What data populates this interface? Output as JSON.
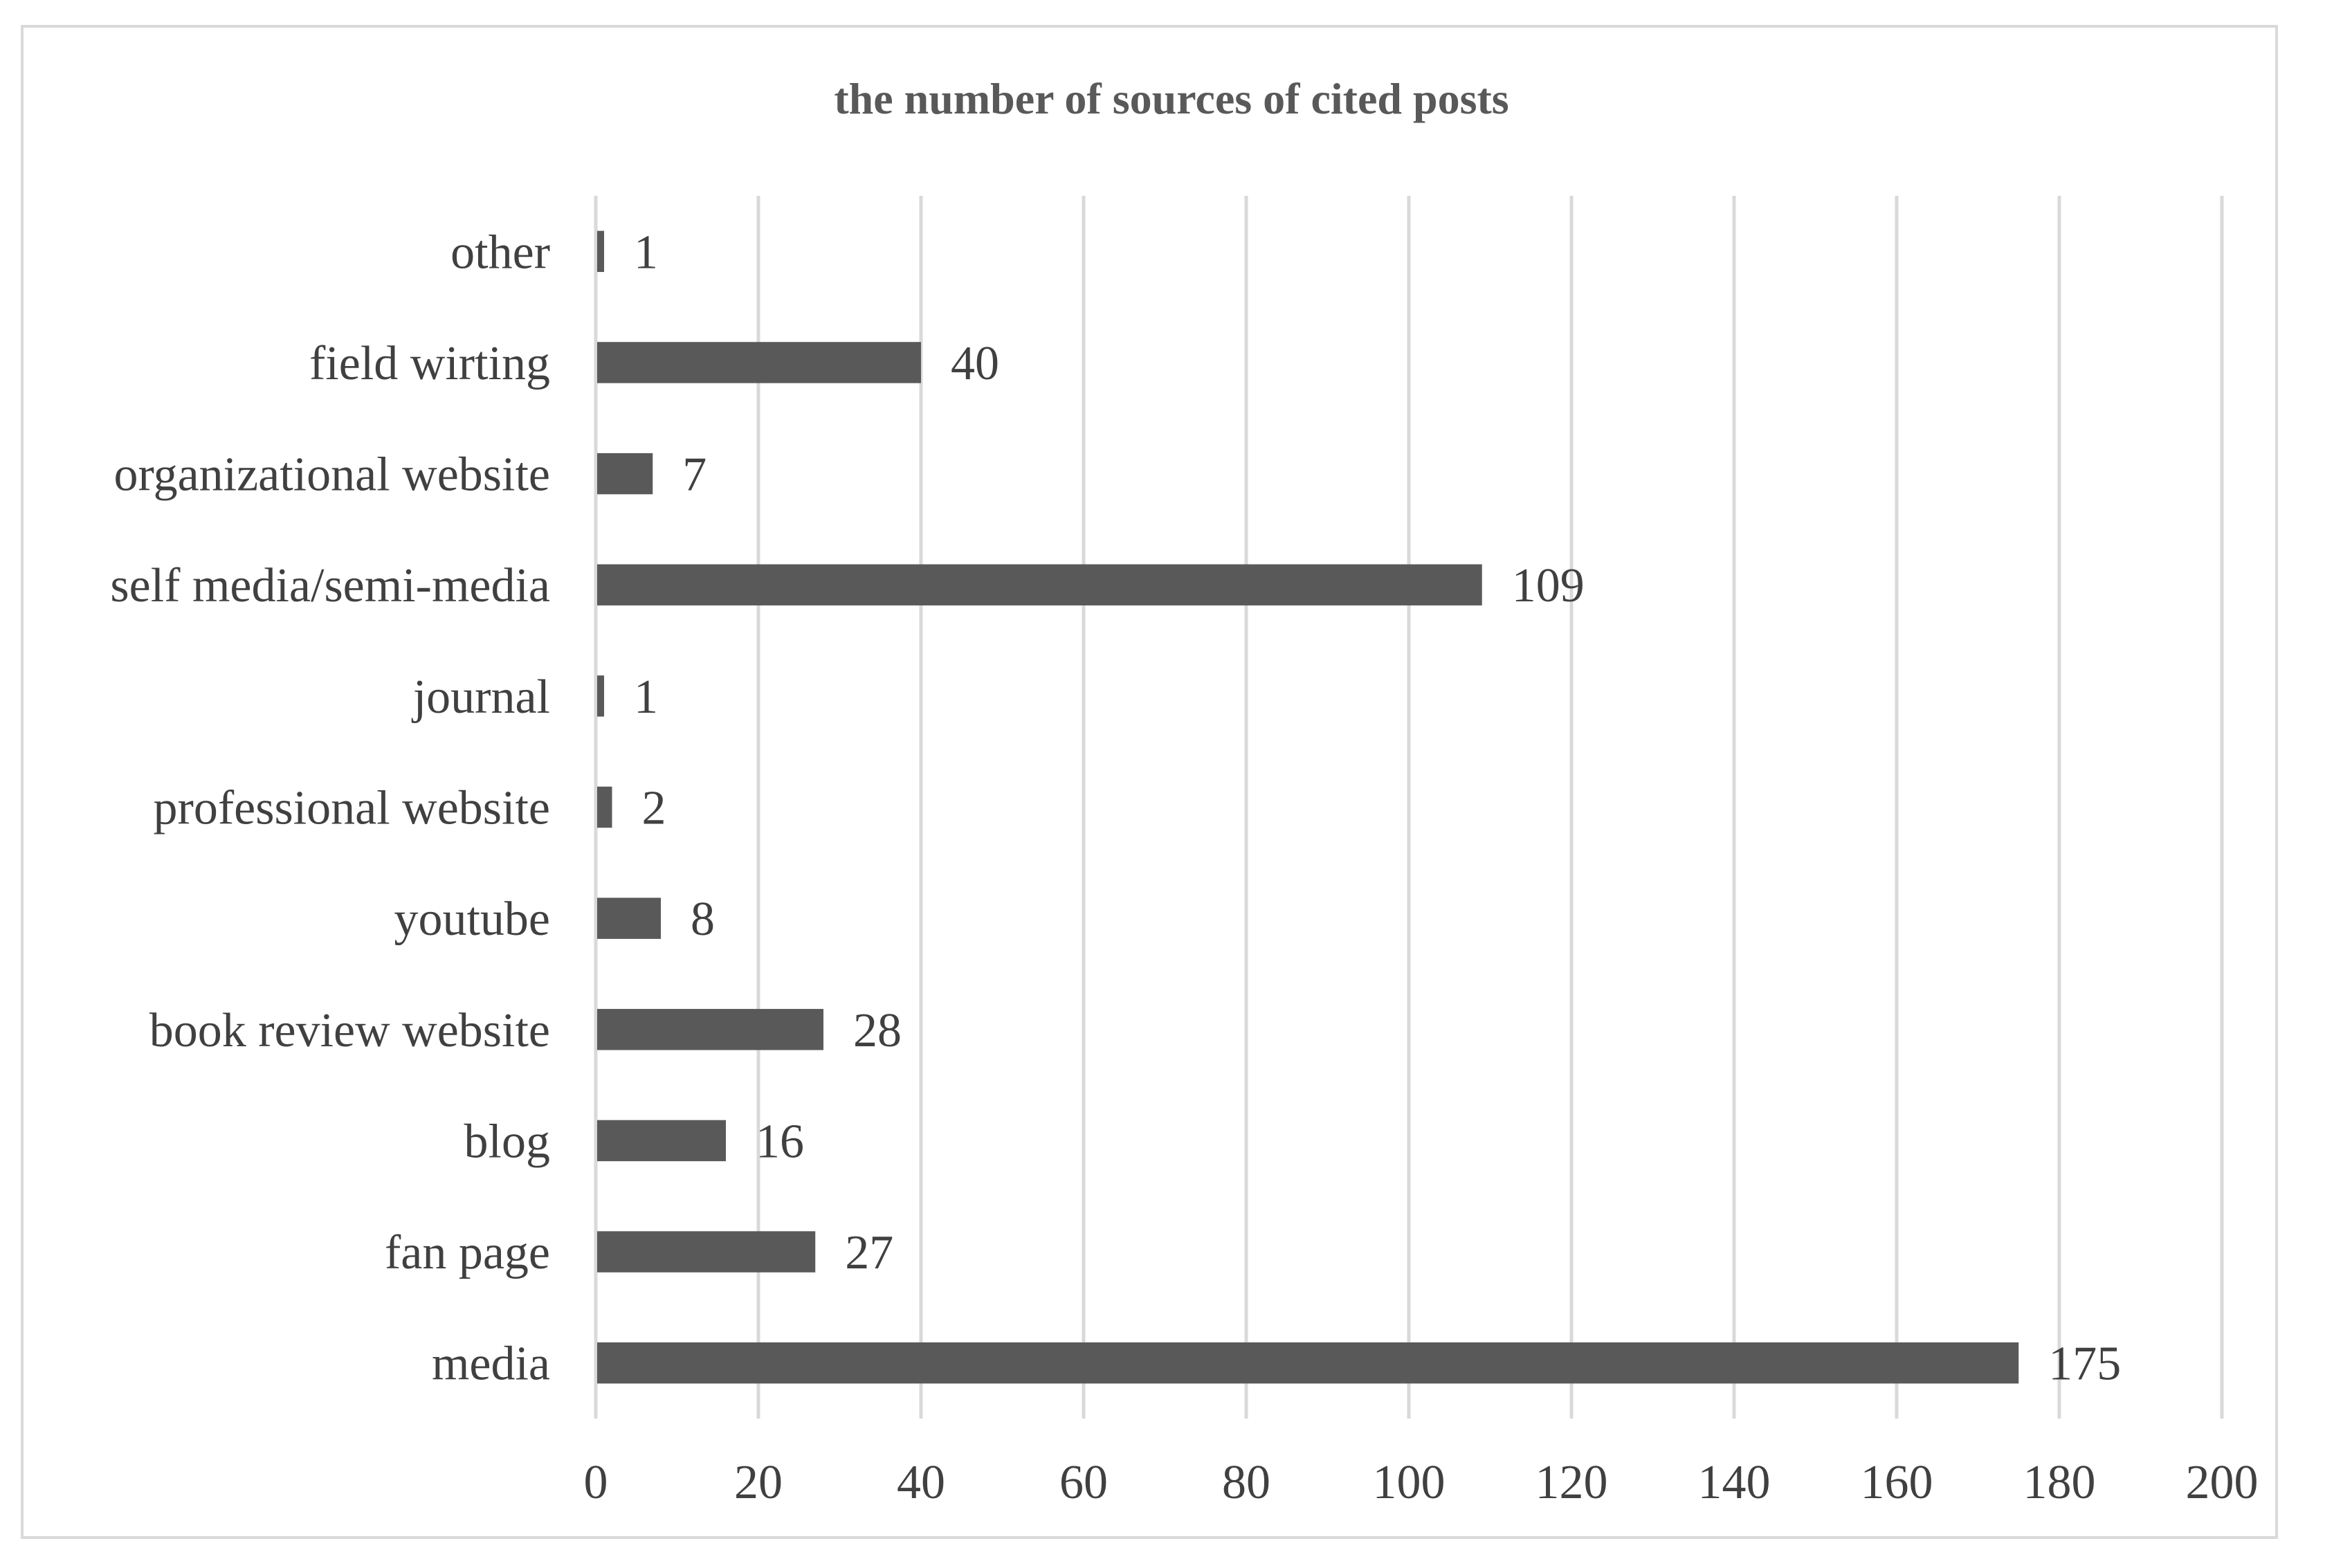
{
  "chart_data": {
    "type": "bar",
    "orientation": "horizontal",
    "title": "the number  of sources  of cited posts",
    "categories": [
      "other",
      "field wirting",
      "organizational website",
      "self media/semi-media",
      "journal",
      "professional website",
      "youtube",
      "book review website",
      "blog",
      "fan page",
      "media"
    ],
    "values": [
      1,
      40,
      7,
      109,
      1,
      2,
      8,
      28,
      16,
      27,
      175
    ],
    "xlim": [
      0,
      200
    ],
    "x_ticks": [
      0,
      20,
      40,
      60,
      80,
      100,
      120,
      140,
      160,
      180,
      200
    ],
    "bar_color": "#595959",
    "grid": true,
    "legend": false,
    "data_labels": true
  }
}
